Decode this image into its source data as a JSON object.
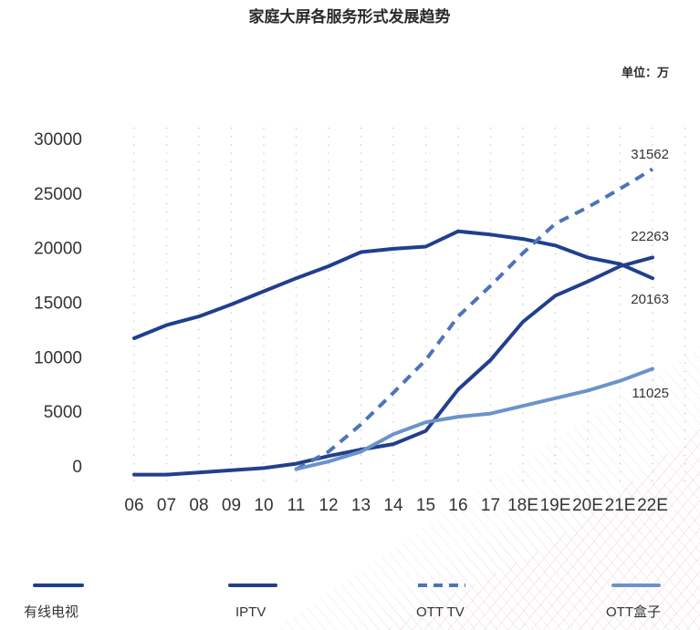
{
  "chart_data": {
    "type": "line",
    "title": "家庭大屏各服务形式发展趋势",
    "unit_label": "单位：万",
    "categories": [
      "06",
      "07",
      "08",
      "09",
      "10",
      "11",
      "12",
      "13",
      "14",
      "15",
      "16",
      "17",
      "18E",
      "19E",
      "20E",
      "21E",
      "22E"
    ],
    "ylim": [
      -1200,
      31000
    ],
    "yticks": [
      "0",
      "5000",
      "10000",
      "15000",
      "20000",
      "25000",
      "30000"
    ],
    "ytick_values": [
      0,
      5000,
      10000,
      15000,
      20000,
      25000,
      30000
    ],
    "grid": "vertical-dotted",
    "legend_position": "bottom",
    "series": [
      {
        "name": "有线电视",
        "color": "#1f3f8f",
        "dash": "solid",
        "values": [
          11700,
          12900,
          13700,
          14800,
          16000,
          17200,
          18300,
          19600,
          19900,
          20100,
          21500,
          21200,
          20800,
          20200,
          19100,
          18500,
          17200
        ]
      },
      {
        "name": "IPTV",
        "color": "#233f8c",
        "dash": "solid",
        "values": [
          -800,
          -800,
          -600,
          -400,
          -200,
          200,
          900,
          1500,
          2000,
          3200,
          7000,
          9700,
          13200,
          15600,
          16900,
          18300,
          19100
        ]
      },
      {
        "name": "OTT TV",
        "color": "#4d74b8",
        "dash": "dashed",
        "values": [
          null,
          null,
          null,
          null,
          null,
          -300,
          1300,
          3800,
          6700,
          9700,
          13700,
          16500,
          19500,
          22200,
          23700,
          25400,
          27200
        ]
      },
      {
        "name": "OTT盒子",
        "color": "#6b93cb",
        "dash": "solid",
        "values": [
          null,
          null,
          null,
          null,
          null,
          -300,
          400,
          1300,
          2900,
          4000,
          4500,
          4800,
          5500,
          6200,
          6900,
          7800,
          8900
        ]
      }
    ],
    "annotations": [
      {
        "text": "31562",
        "series": "OTT TV"
      },
      {
        "text": "22263",
        "series": "IPTV"
      },
      {
        "text": "20163",
        "series": "有线电视"
      },
      {
        "text": "11025",
        "series": "OTT盒子"
      }
    ]
  }
}
